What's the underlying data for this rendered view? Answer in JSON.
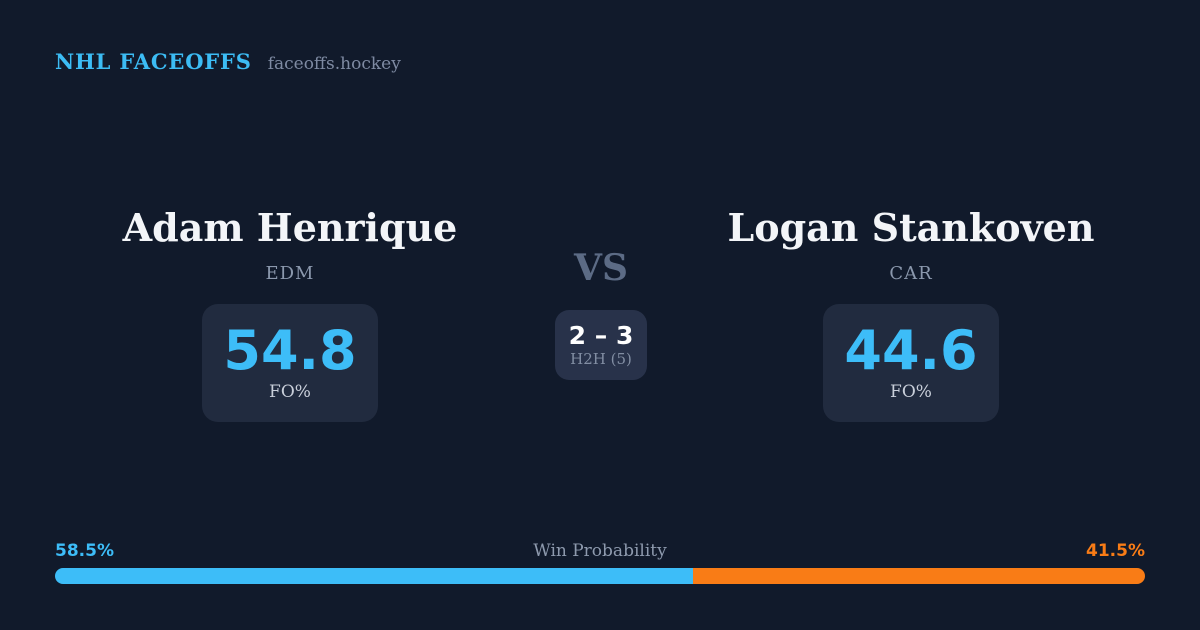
{
  "header": {
    "brand": "NHL FACEOFFS",
    "site": "faceoffs.hockey"
  },
  "matchup": {
    "vs_label": "VS",
    "players": [
      {
        "name": "Adam Henrique",
        "team": "EDM",
        "stat_value": "54.8",
        "stat_label": "FO%"
      },
      {
        "name": "Logan Stankoven",
        "team": "CAR",
        "stat_value": "44.6",
        "stat_label": "FO%"
      }
    ],
    "h2h": {
      "score": "2 – 3",
      "label": "H2H (5)"
    }
  },
  "win_probability": {
    "title": "Win Probability",
    "left_pct_label": "58.5%",
    "right_pct_label": "41.5%",
    "left_value": 58.5,
    "right_value": 41.5
  },
  "colors": {
    "background": "#111a2b",
    "card": "#212b3f",
    "h2h_card": "#28324a",
    "accent_blue": "#3dbdf8",
    "accent_orange": "#f97c16",
    "name_text": "#f3f5f8",
    "muted_text": "#8b98ad"
  }
}
